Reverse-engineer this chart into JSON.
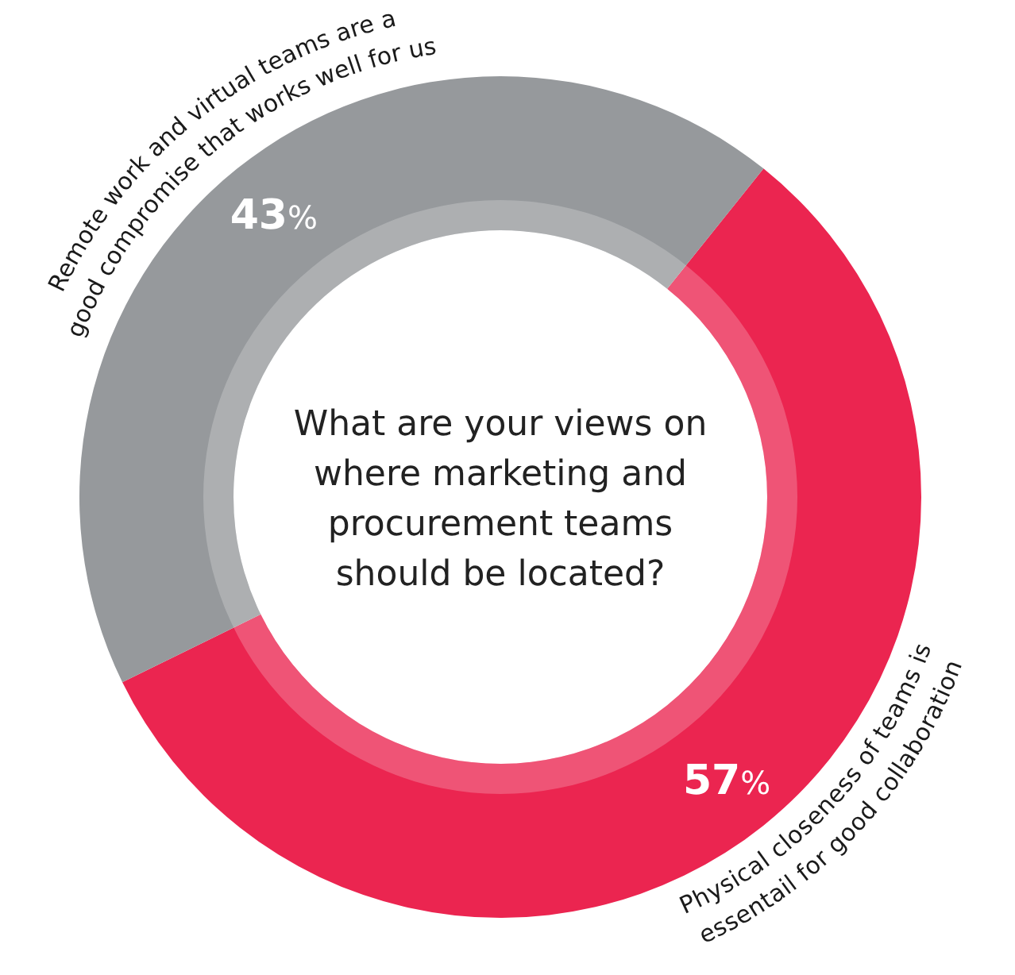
{
  "chart_data": {
    "type": "donut",
    "title": "What are your views on where marketing and procurement teams should be located?",
    "categories": [
      "Physical closeness of teams is essentail for good collaboration",
      "Remote work and virtual teams are a good compromise that works well for us"
    ],
    "values": [
      57,
      43
    ],
    "colors": [
      "#eb2550",
      "#96999c"
    ],
    "value_labels": [
      "57%",
      "43%"
    ]
  }
}
